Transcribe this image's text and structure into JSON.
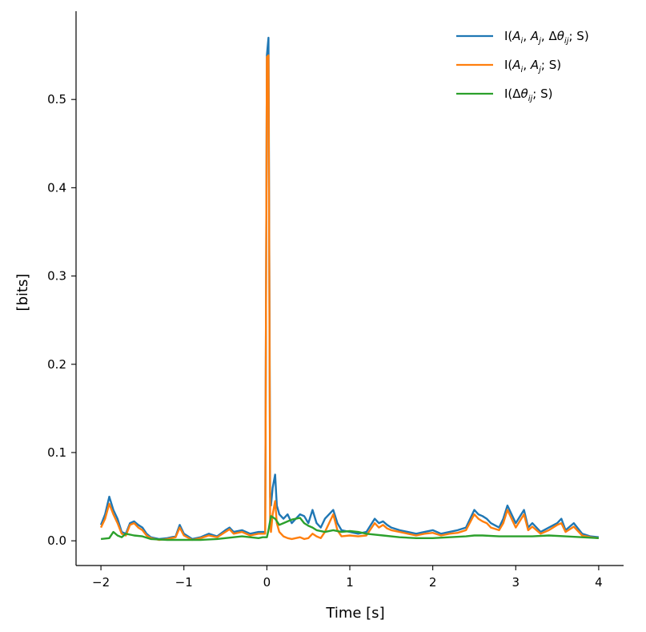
{
  "chart_data": {
    "type": "line",
    "title": "",
    "xlabel": "Time [s]",
    "ylabel": "[bits]",
    "xlim": [
      -2.3,
      4.3
    ],
    "ylim": [
      -0.028,
      0.6
    ],
    "xticks": [
      -2,
      -1,
      0,
      1,
      2,
      3,
      4
    ],
    "xtick_labels": [
      "−2",
      "−1",
      "0",
      "1",
      "2",
      "3",
      "4"
    ],
    "yticks": [
      0.0,
      0.1,
      0.2,
      0.3,
      0.4,
      0.5
    ],
    "ytick_labels": [
      "0.0",
      "0.1",
      "0.2",
      "0.3",
      "0.4",
      "0.5"
    ],
    "grid": false,
    "legend_position": "top-right",
    "series": [
      {
        "name": "I(A_i, A_j, Δθ_ij; S)",
        "color": "#1f77b4",
        "x": [
          -2.0,
          -1.95,
          -1.9,
          -1.85,
          -1.8,
          -1.75,
          -1.7,
          -1.65,
          -1.6,
          -1.55,
          -1.5,
          -1.45,
          -1.4,
          -1.3,
          -1.2,
          -1.1,
          -1.05,
          -1.0,
          -0.9,
          -0.8,
          -0.7,
          -0.6,
          -0.5,
          -0.45,
          -0.4,
          -0.3,
          -0.2,
          -0.1,
          -0.02,
          0.0,
          0.02,
          0.03,
          0.04,
          0.05,
          0.07,
          0.1,
          0.12,
          0.15,
          0.2,
          0.25,
          0.3,
          0.35,
          0.4,
          0.45,
          0.5,
          0.55,
          0.6,
          0.65,
          0.7,
          0.75,
          0.8,
          0.85,
          0.9,
          1.0,
          1.1,
          1.2,
          1.3,
          1.35,
          1.4,
          1.45,
          1.5,
          1.6,
          1.7,
          1.8,
          1.9,
          2.0,
          2.1,
          2.2,
          2.3,
          2.4,
          2.5,
          2.55,
          2.6,
          2.65,
          2.7,
          2.8,
          2.85,
          2.9,
          3.0,
          3.1,
          3.15,
          3.2,
          3.3,
          3.4,
          3.5,
          3.55,
          3.6,
          3.7,
          3.8,
          3.9,
          4.0
        ],
        "y": [
          0.018,
          0.03,
          0.05,
          0.035,
          0.025,
          0.01,
          0.008,
          0.02,
          0.022,
          0.018,
          0.015,
          0.008,
          0.004,
          0.002,
          0.003,
          0.005,
          0.018,
          0.008,
          0.002,
          0.004,
          0.008,
          0.005,
          0.012,
          0.015,
          0.01,
          0.012,
          0.008,
          0.01,
          0.01,
          0.55,
          0.57,
          0.3,
          0.05,
          0.04,
          0.06,
          0.075,
          0.04,
          0.03,
          0.025,
          0.03,
          0.02,
          0.025,
          0.03,
          0.028,
          0.02,
          0.035,
          0.02,
          0.015,
          0.025,
          0.03,
          0.035,
          0.02,
          0.012,
          0.01,
          0.008,
          0.01,
          0.025,
          0.02,
          0.022,
          0.018,
          0.015,
          0.012,
          0.01,
          0.008,
          0.01,
          0.012,
          0.008,
          0.01,
          0.012,
          0.015,
          0.035,
          0.03,
          0.028,
          0.025,
          0.02,
          0.015,
          0.025,
          0.04,
          0.02,
          0.035,
          0.015,
          0.02,
          0.01,
          0.015,
          0.02,
          0.025,
          0.012,
          0.02,
          0.008,
          0.005,
          0.004
        ]
      },
      {
        "name": "I(A_i, A_j; S)",
        "color": "#ff7f0e",
        "x": [
          -2.0,
          -1.95,
          -1.9,
          -1.85,
          -1.8,
          -1.75,
          -1.7,
          -1.65,
          -1.6,
          -1.55,
          -1.5,
          -1.45,
          -1.4,
          -1.3,
          -1.2,
          -1.1,
          -1.05,
          -1.0,
          -0.9,
          -0.8,
          -0.7,
          -0.6,
          -0.5,
          -0.45,
          -0.4,
          -0.3,
          -0.2,
          -0.1,
          -0.02,
          0.0,
          0.02,
          0.03,
          0.04,
          0.05,
          0.07,
          0.1,
          0.12,
          0.15,
          0.2,
          0.25,
          0.3,
          0.35,
          0.4,
          0.45,
          0.5,
          0.55,
          0.6,
          0.65,
          0.7,
          0.75,
          0.8,
          0.85,
          0.9,
          1.0,
          1.1,
          1.2,
          1.3,
          1.35,
          1.4,
          1.45,
          1.5,
          1.6,
          1.7,
          1.8,
          1.9,
          2.0,
          2.1,
          2.2,
          2.3,
          2.4,
          2.5,
          2.55,
          2.6,
          2.65,
          2.7,
          2.8,
          2.85,
          2.9,
          3.0,
          3.1,
          3.15,
          3.2,
          3.3,
          3.4,
          3.5,
          3.55,
          3.6,
          3.7,
          3.8,
          3.9,
          4.0
        ],
        "y": [
          0.015,
          0.025,
          0.042,
          0.03,
          0.02,
          0.008,
          0.006,
          0.018,
          0.02,
          0.015,
          0.012,
          0.006,
          0.003,
          0.001,
          0.002,
          0.004,
          0.015,
          0.006,
          0.001,
          0.003,
          0.006,
          0.004,
          0.01,
          0.013,
          0.008,
          0.01,
          0.006,
          0.008,
          0.008,
          0.548,
          0.55,
          0.28,
          0.02,
          0.01,
          0.03,
          0.045,
          0.02,
          0.01,
          0.005,
          0.003,
          0.002,
          0.003,
          0.004,
          0.002,
          0.003,
          0.008,
          0.005,
          0.003,
          0.01,
          0.02,
          0.03,
          0.012,
          0.005,
          0.006,
          0.005,
          0.006,
          0.02,
          0.015,
          0.018,
          0.014,
          0.012,
          0.01,
          0.008,
          0.006,
          0.008,
          0.009,
          0.006,
          0.008,
          0.009,
          0.012,
          0.03,
          0.025,
          0.022,
          0.02,
          0.015,
          0.012,
          0.02,
          0.035,
          0.015,
          0.03,
          0.012,
          0.016,
          0.008,
          0.012,
          0.018,
          0.02,
          0.01,
          0.016,
          0.006,
          0.004,
          0.003
        ]
      },
      {
        "name": "I(Δθ_ij; S)",
        "color": "#2ca02c",
        "x": [
          -2.0,
          -1.9,
          -1.85,
          -1.8,
          -1.75,
          -1.7,
          -1.6,
          -1.5,
          -1.4,
          -1.2,
          -1.0,
          -0.8,
          -0.6,
          -0.4,
          -0.3,
          -0.2,
          -0.1,
          -0.05,
          0.0,
          0.02,
          0.05,
          0.1,
          0.15,
          0.2,
          0.25,
          0.3,
          0.35,
          0.4,
          0.45,
          0.5,
          0.55,
          0.6,
          0.7,
          0.8,
          0.9,
          1.0,
          1.1,
          1.2,
          1.3,
          1.4,
          1.6,
          1.8,
          2.0,
          2.2,
          2.4,
          2.5,
          2.6,
          2.8,
          3.0,
          3.2,
          3.4,
          3.6,
          3.8,
          4.0
        ],
        "y": [
          0.002,
          0.003,
          0.01,
          0.006,
          0.004,
          0.008,
          0.006,
          0.005,
          0.002,
          0.001,
          0.001,
          0.001,
          0.002,
          0.004,
          0.005,
          0.004,
          0.003,
          0.004,
          0.004,
          0.012,
          0.028,
          0.025,
          0.018,
          0.02,
          0.022,
          0.024,
          0.025,
          0.026,
          0.02,
          0.017,
          0.015,
          0.012,
          0.01,
          0.012,
          0.01,
          0.011,
          0.01,
          0.008,
          0.007,
          0.006,
          0.004,
          0.003,
          0.003,
          0.004,
          0.005,
          0.006,
          0.006,
          0.005,
          0.005,
          0.005,
          0.006,
          0.005,
          0.004,
          0.003
        ]
      }
    ]
  }
}
